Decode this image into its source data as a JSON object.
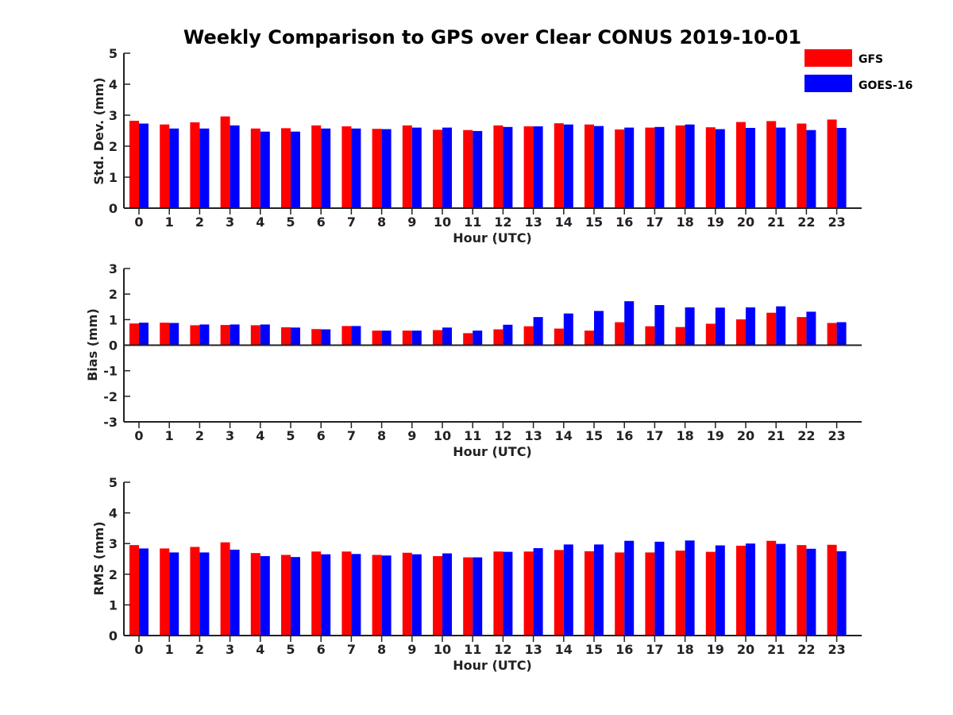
{
  "title": "Weekly Comparison to GPS over Clear CONUS 2019-10-01",
  "legend": [
    {
      "name": "GFS",
      "color": "#ff0000"
    },
    {
      "name": "GOES-16",
      "color": "#0000ff"
    }
  ],
  "chart_data": [
    {
      "type": "bar",
      "xlabel": "Hour (UTC)",
      "ylabel": "Std. Dev. (mm)",
      "ylim": [
        0,
        5
      ],
      "yticks": [
        0,
        1,
        2,
        3,
        4,
        5
      ],
      "categories": [
        "0",
        "1",
        "2",
        "3",
        "4",
        "5",
        "6",
        "7",
        "8",
        "9",
        "10",
        "11",
        "12",
        "13",
        "14",
        "15",
        "16",
        "17",
        "18",
        "19",
        "20",
        "21",
        "22",
        "23"
      ],
      "series": [
        {
          "name": "GFS",
          "color": "#ff0000",
          "values": [
            2.82,
            2.7,
            2.77,
            2.96,
            2.57,
            2.58,
            2.67,
            2.64,
            2.56,
            2.67,
            2.53,
            2.52,
            2.67,
            2.64,
            2.74,
            2.7,
            2.54,
            2.6,
            2.67,
            2.61,
            2.78,
            2.81,
            2.73,
            2.86
          ]
        },
        {
          "name": "GOES-16",
          "color": "#0000ff",
          "values": [
            2.73,
            2.57,
            2.57,
            2.67,
            2.47,
            2.47,
            2.57,
            2.57,
            2.55,
            2.6,
            2.6,
            2.49,
            2.62,
            2.64,
            2.7,
            2.65,
            2.6,
            2.62,
            2.7,
            2.55,
            2.59,
            2.6,
            2.52,
            2.59
          ]
        }
      ]
    },
    {
      "type": "bar",
      "xlabel": "Hour (UTC)",
      "ylabel": "Bias (mm)",
      "ylim": [
        -3,
        3
      ],
      "yticks": [
        -3,
        -2,
        -1,
        0,
        1,
        2,
        3
      ],
      "categories": [
        "0",
        "1",
        "2",
        "3",
        "4",
        "5",
        "6",
        "7",
        "8",
        "9",
        "10",
        "11",
        "12",
        "13",
        "14",
        "15",
        "16",
        "17",
        "18",
        "19",
        "20",
        "21",
        "22",
        "23"
      ],
      "series": [
        {
          "name": "GFS",
          "color": "#ff0000",
          "values": [
            0.85,
            0.88,
            0.78,
            0.79,
            0.78,
            0.7,
            0.63,
            0.75,
            0.57,
            0.57,
            0.59,
            0.47,
            0.62,
            0.74,
            0.65,
            0.57,
            0.9,
            0.74,
            0.71,
            0.84,
            1.01,
            1.27,
            1.1,
            0.87
          ]
        },
        {
          "name": "GOES-16",
          "color": "#0000ff",
          "values": [
            0.88,
            0.87,
            0.81,
            0.81,
            0.81,
            0.69,
            0.62,
            0.75,
            0.57,
            0.57,
            0.69,
            0.57,
            0.8,
            1.1,
            1.24,
            1.34,
            1.72,
            1.57,
            1.48,
            1.47,
            1.48,
            1.52,
            1.31,
            0.9
          ]
        }
      ]
    },
    {
      "type": "bar",
      "xlabel": "Hour (UTC)",
      "ylabel": "RMS (mm)",
      "ylim": [
        0,
        5
      ],
      "yticks": [
        0,
        1,
        2,
        3,
        4,
        5
      ],
      "categories": [
        "0",
        "1",
        "2",
        "3",
        "4",
        "5",
        "6",
        "7",
        "8",
        "9",
        "10",
        "11",
        "12",
        "13",
        "14",
        "15",
        "16",
        "17",
        "18",
        "19",
        "20",
        "21",
        "22",
        "23"
      ],
      "series": [
        {
          "name": "GFS",
          "color": "#ff0000",
          "values": [
            2.95,
            2.84,
            2.89,
            3.04,
            2.69,
            2.63,
            2.74,
            2.74,
            2.63,
            2.7,
            2.59,
            2.55,
            2.74,
            2.74,
            2.79,
            2.75,
            2.71,
            2.71,
            2.77,
            2.73,
            2.93,
            3.09,
            2.95,
            2.96
          ]
        },
        {
          "name": "GOES-16",
          "color": "#0000ff",
          "values": [
            2.84,
            2.71,
            2.71,
            2.8,
            2.59,
            2.56,
            2.65,
            2.66,
            2.61,
            2.65,
            2.68,
            2.55,
            2.73,
            2.85,
            2.97,
            2.97,
            3.09,
            3.06,
            3.1,
            2.94,
            3.0,
            2.99,
            2.83,
            2.75
          ]
        }
      ]
    }
  ]
}
